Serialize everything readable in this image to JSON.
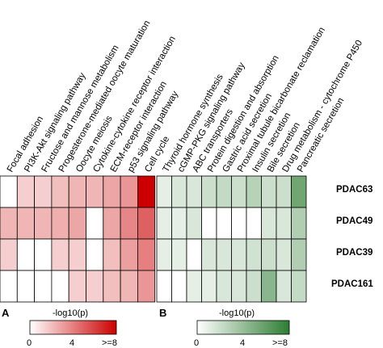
{
  "chart_data": [
    {
      "type": "heatmap",
      "panel": "A",
      "color": "#cc0000",
      "columns": [
        "Focal adhesion",
        "PI3K-Akt signaling pathway",
        "Fructose and mannose metabolism",
        "Progesterone-mediated oocyte maturation",
        "Oocyte meiosis",
        "Cytokine-cytokine receptor interaction",
        "ECM-receptor interaction",
        "p53 signaling pathway",
        "Cell cycle"
      ],
      "rows": [
        "PDAC63",
        "PDAC49",
        "PDAC39",
        "PDAC161"
      ],
      "values": [
        [
          0,
          1.5,
          1.5,
          2,
          2.3,
          2.3,
          2.8,
          3.3,
          8
        ],
        [
          2.3,
          2.3,
          2.3,
          2.5,
          2.8,
          0,
          2.8,
          3.8,
          5
        ],
        [
          1.5,
          0,
          0,
          1.5,
          1.5,
          0,
          2,
          3,
          4
        ],
        [
          0,
          0,
          0,
          0,
          1.5,
          1.5,
          2,
          2.3,
          3.3
        ]
      ],
      "legend": {
        "title": "-log10(p)",
        "ticks": [
          "0",
          "4",
          ">=8"
        ],
        "min": 0,
        "max": 8
      }
    },
    {
      "type": "heatmap",
      "panel": "B",
      "color": "#2e7d32",
      "columns": [
        "Thyroid hormone synthesis",
        "cGMP-PKG signaling pathway",
        "ABC transporters",
        "Protein digestion and absorption",
        "Gastric acid secretion",
        "Proximal tubule bicarbonate reclamation",
        "Insulin secretion",
        "Bile secretion",
        "Drug metabolism - cytochrome P450",
        "Pancreatic secretion"
      ],
      "rows": [
        "PDAC63",
        "PDAC49",
        "PDAC39",
        "PDAC161"
      ],
      "values": [
        [
          1,
          1.5,
          1.5,
          2,
          2.3,
          2,
          2.8,
          2,
          2,
          5.5
        ],
        [
          1,
          1,
          1.5,
          0,
          0,
          0,
          0,
          1.5,
          1.5,
          3
        ],
        [
          1,
          1,
          0,
          1.5,
          1.5,
          1.5,
          1.8,
          2,
          1.5,
          3
        ],
        [
          0,
          0,
          1,
          1,
          1.5,
          1.5,
          2,
          4.5,
          1.5,
          2.3
        ]
      ],
      "legend": {
        "title": "-log10(p)",
        "ticks": [
          "0",
          "4",
          ">=8"
        ],
        "min": 0,
        "max": 8
      }
    }
  ]
}
